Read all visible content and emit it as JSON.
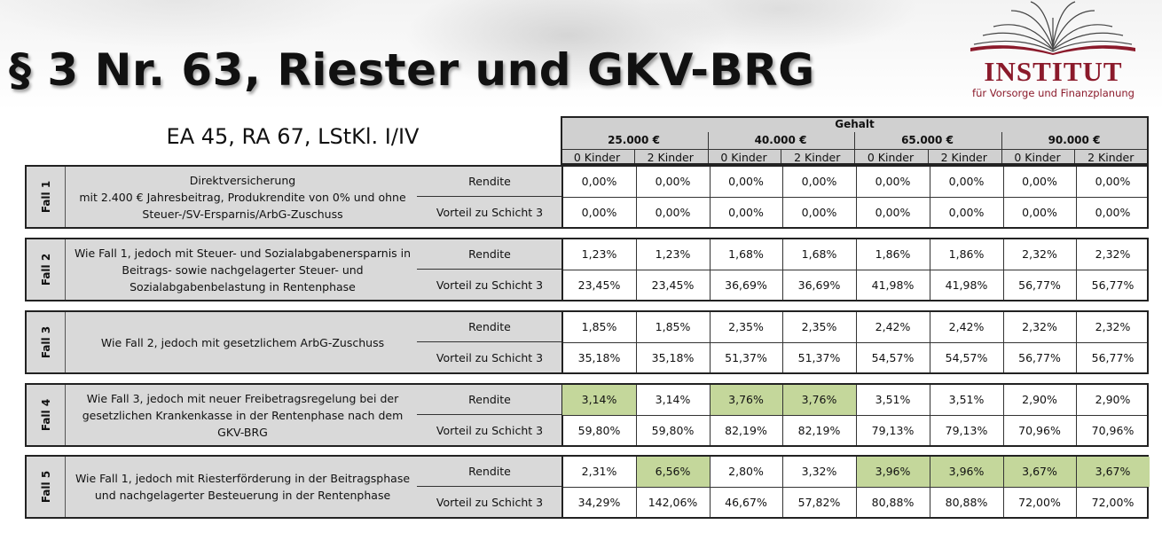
{
  "title": "§ 3 Nr. 63, Riester und GKV-BRG",
  "subtitle": "EA 45, RA 67, LStKl. I/IV",
  "logo": {
    "name": "INSTITUT",
    "tagline": "für Vorsorge und Finanzplanung",
    "color": "#8b1a2b"
  },
  "highlight_color": "#c4d79b",
  "header": {
    "group": "Gehalt",
    "salaries": [
      "25.000 €",
      "40.000 €",
      "65.000 €",
      "90.000 €"
    ],
    "kids": [
      "0 Kinder",
      "2 Kinder",
      "0 Kinder",
      "2 Kinder",
      "0 Kinder",
      "2 Kinder",
      "0 Kinder",
      "2 Kinder"
    ]
  },
  "cases": [
    {
      "tag": "Fall 1",
      "desc": [
        "Direktversicherung",
        "mit 2.400 € Jahresbeitrag, Produkrendite von 0% und ohne",
        "Steuer-/SV-Ersparnis/ArbG-Zuschuss"
      ],
      "rows": [
        {
          "label": "Rendite",
          "values": [
            "0,00%",
            "0,00%",
            "0,00%",
            "0,00%",
            "0,00%",
            "0,00%",
            "0,00%",
            "0,00%"
          ],
          "highlight": []
        },
        {
          "label": "Vorteil zu Schicht 3",
          "values": [
            "0,00%",
            "0,00%",
            "0,00%",
            "0,00%",
            "0,00%",
            "0,00%",
            "0,00%",
            "0,00%"
          ],
          "highlight": []
        }
      ]
    },
    {
      "tag": "Fall 2",
      "desc": [
        "Wie Fall 1, jedoch mit Steuer- und Sozialabgabenersparnis in",
        "Beitrags- sowie nachgelagerter Steuer- und",
        "Sozialabgabenbelastung in Rentenphase"
      ],
      "rows": [
        {
          "label": "Rendite",
          "values": [
            "1,23%",
            "1,23%",
            "1,68%",
            "1,68%",
            "1,86%",
            "1,86%",
            "2,32%",
            "2,32%"
          ],
          "highlight": []
        },
        {
          "label": "Vorteil zu Schicht 3",
          "values": [
            "23,45%",
            "23,45%",
            "36,69%",
            "36,69%",
            "41,98%",
            "41,98%",
            "56,77%",
            "56,77%"
          ],
          "highlight": []
        }
      ]
    },
    {
      "tag": "Fall 3",
      "desc": [
        "Wie Fall 2, jedoch mit gesetzlichem ArbG-Zuschuss"
      ],
      "rows": [
        {
          "label": "Rendite",
          "values": [
            "1,85%",
            "1,85%",
            "2,35%",
            "2,35%",
            "2,42%",
            "2,42%",
            "2,32%",
            "2,32%"
          ],
          "highlight": []
        },
        {
          "label": "Vorteil zu Schicht 3",
          "values": [
            "35,18%",
            "35,18%",
            "51,37%",
            "51,37%",
            "54,57%",
            "54,57%",
            "56,77%",
            "56,77%"
          ],
          "highlight": []
        }
      ]
    },
    {
      "tag": "Fall 4",
      "desc": [
        "Wie Fall 3, jedoch mit neuer Freibetragsregelung bei der",
        "gesetzlichen Krankenkasse in der Rentenphase nach dem",
        "GKV-BRG"
      ],
      "rows": [
        {
          "label": "Rendite",
          "values": [
            "3,14%",
            "3,14%",
            "3,76%",
            "3,76%",
            "3,51%",
            "3,51%",
            "2,90%",
            "2,90%"
          ],
          "highlight": [
            0,
            2,
            3
          ]
        },
        {
          "label": "Vorteil zu Schicht 3",
          "values": [
            "59,80%",
            "59,80%",
            "82,19%",
            "82,19%",
            "79,13%",
            "79,13%",
            "70,96%",
            "70,96%"
          ],
          "highlight": []
        }
      ]
    },
    {
      "tag": "Fall 5",
      "desc": [
        "Wie Fall 1, jedoch mit Riesterförderung in der Beitragsphase",
        "und nachgelagerter Besteuerung in der Rentenphase"
      ],
      "rows": [
        {
          "label": "Rendite",
          "values": [
            "2,31%",
            "6,56%",
            "2,80%",
            "3,32%",
            "3,96%",
            "3,96%",
            "3,67%",
            "3,67%"
          ],
          "highlight": [
            1,
            4,
            5,
            6,
            7
          ]
        },
        {
          "label": "Vorteil zu Schicht 3",
          "values": [
            "34,29%",
            "142,06%",
            "46,67%",
            "57,82%",
            "80,88%",
            "80,88%",
            "72,00%",
            "72,00%"
          ],
          "highlight": []
        }
      ]
    }
  ]
}
